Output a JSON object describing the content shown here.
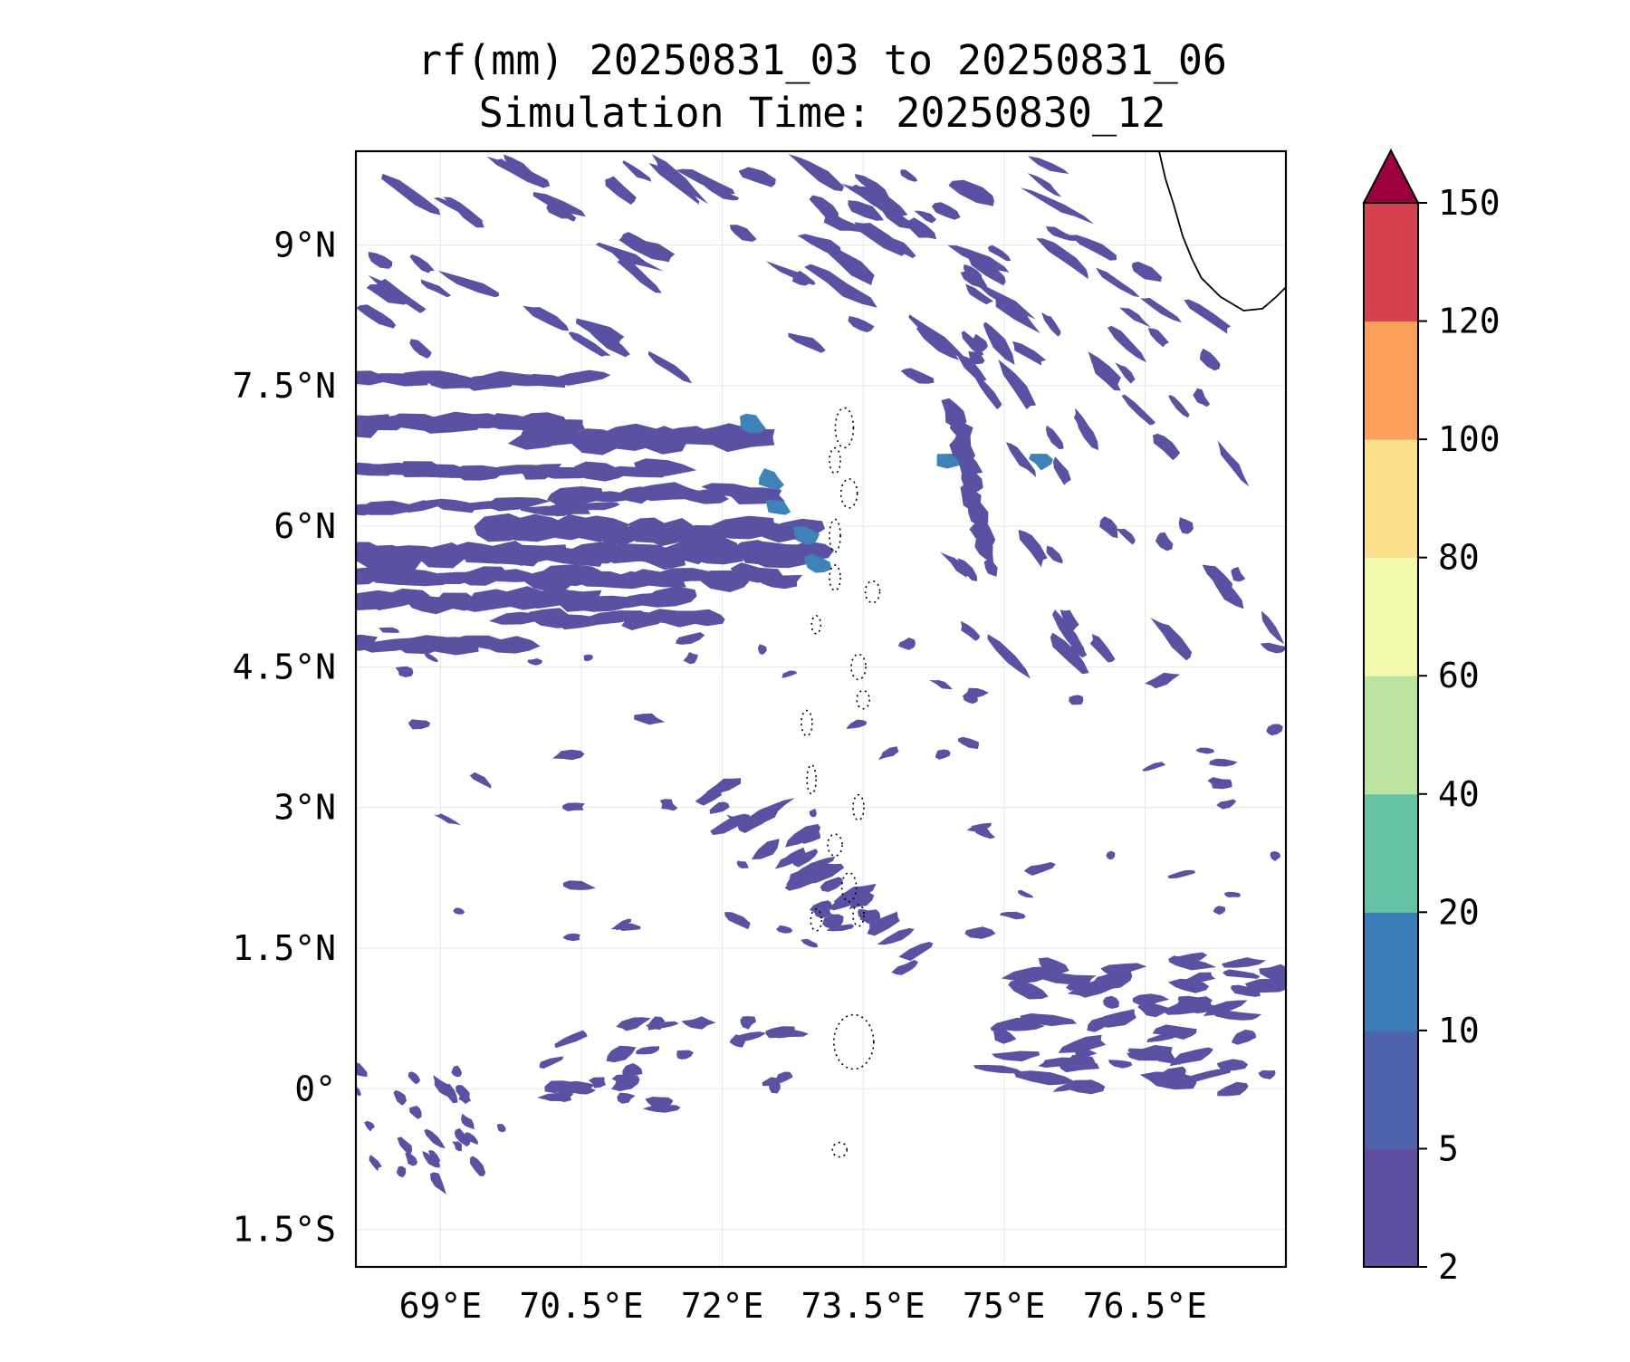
{
  "title": {
    "line1": "rf(mm) 20250831_03 to 20250831_06",
    "line2": "Simulation Time: 20250830_12"
  },
  "map": {
    "lon_range": [
      68.1,
      78.0
    ],
    "lat_range": [
      -1.9,
      10.0
    ],
    "lon_ticks": [
      {
        "value": 69.0,
        "label": "69°E"
      },
      {
        "value": 70.5,
        "label": "70.5°E"
      },
      {
        "value": 72.0,
        "label": "72°E"
      },
      {
        "value": 73.5,
        "label": "73.5°E"
      },
      {
        "value": 75.0,
        "label": "75°E"
      },
      {
        "value": 76.5,
        "label": "76.5°E"
      }
    ],
    "lat_ticks": [
      {
        "value": 9.0,
        "label": "9°N"
      },
      {
        "value": 7.5,
        "label": "7.5°N"
      },
      {
        "value": 6.0,
        "label": "6°N"
      },
      {
        "value": 4.5,
        "label": "4.5°N"
      },
      {
        "value": 3.0,
        "label": "3°N"
      },
      {
        "value": 1.5,
        "label": "1.5°N"
      },
      {
        "value": 0.0,
        "label": "0°"
      },
      {
        "value": -1.5,
        "label": "1.5°S"
      }
    ],
    "grid": true,
    "coastline_color": "#000000",
    "rain_color_main": "#5a51a2",
    "rain_color_secondary": "#3e82b9"
  },
  "colorbar": {
    "levels": [
      2,
      5,
      10,
      20,
      40,
      60,
      80,
      100,
      120,
      150
    ],
    "labels": [
      "2",
      "5",
      "10",
      "20",
      "40",
      "60",
      "80",
      "100",
      "120",
      "150"
    ],
    "colors": [
      "#5e4fa2",
      "#4e63ab",
      "#3a7fb8",
      "#66c2a5",
      "#bce3a0",
      "#f4faad",
      "#fde08b",
      "#fba05b",
      "#d5414e"
    ],
    "extend_color": "#9e0142",
    "extend": "max"
  }
}
